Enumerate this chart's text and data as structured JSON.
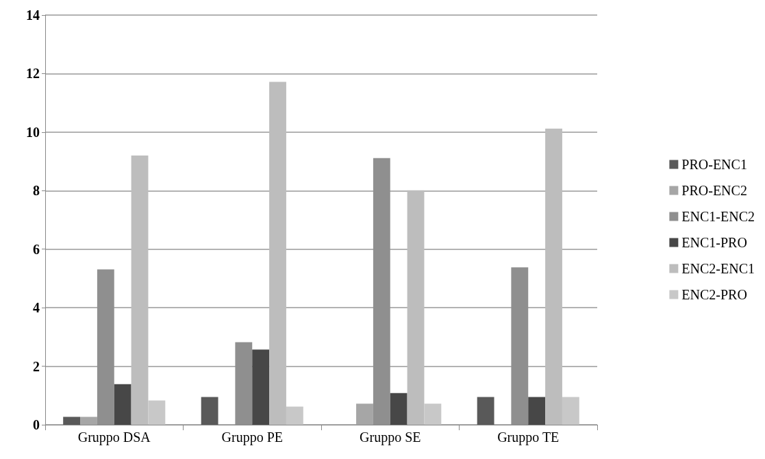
{
  "chart_data": {
    "type": "bar",
    "categories": [
      "Gruppo DSA",
      "Gruppo PE",
      "Gruppo SE",
      "Gruppo TE"
    ],
    "series": [
      {
        "name": "PRO-ENC1",
        "color": "#595959",
        "values": [
          0.27,
          0.95,
          0,
          0.95
        ]
      },
      {
        "name": "PRO-ENC2",
        "color": "#a6a6a6",
        "values": [
          0.27,
          0,
          0.72,
          0
        ]
      },
      {
        "name": "ENC1-ENC2",
        "color": "#8f8f8f",
        "values": [
          5.31,
          2.82,
          9.11,
          5.38
        ]
      },
      {
        "name": "ENC1-PRO",
        "color": "#474747",
        "values": [
          1.39,
          2.57,
          1.08,
          0.95
        ]
      },
      {
        "name": "ENC2-ENC1",
        "color": "#bdbdbd",
        "values": [
          9.2,
          11.72,
          8.01,
          10.12
        ]
      },
      {
        "name": "ENC2-PRO",
        "color": "#c8c8c8",
        "values": [
          0.83,
          0.62,
          0.72,
          0.95
        ]
      }
    ],
    "ylim": [
      0,
      14
    ],
    "yticks": [
      0,
      2,
      4,
      6,
      8,
      10,
      12,
      14
    ],
    "grid": "y",
    "legend": "right"
  }
}
